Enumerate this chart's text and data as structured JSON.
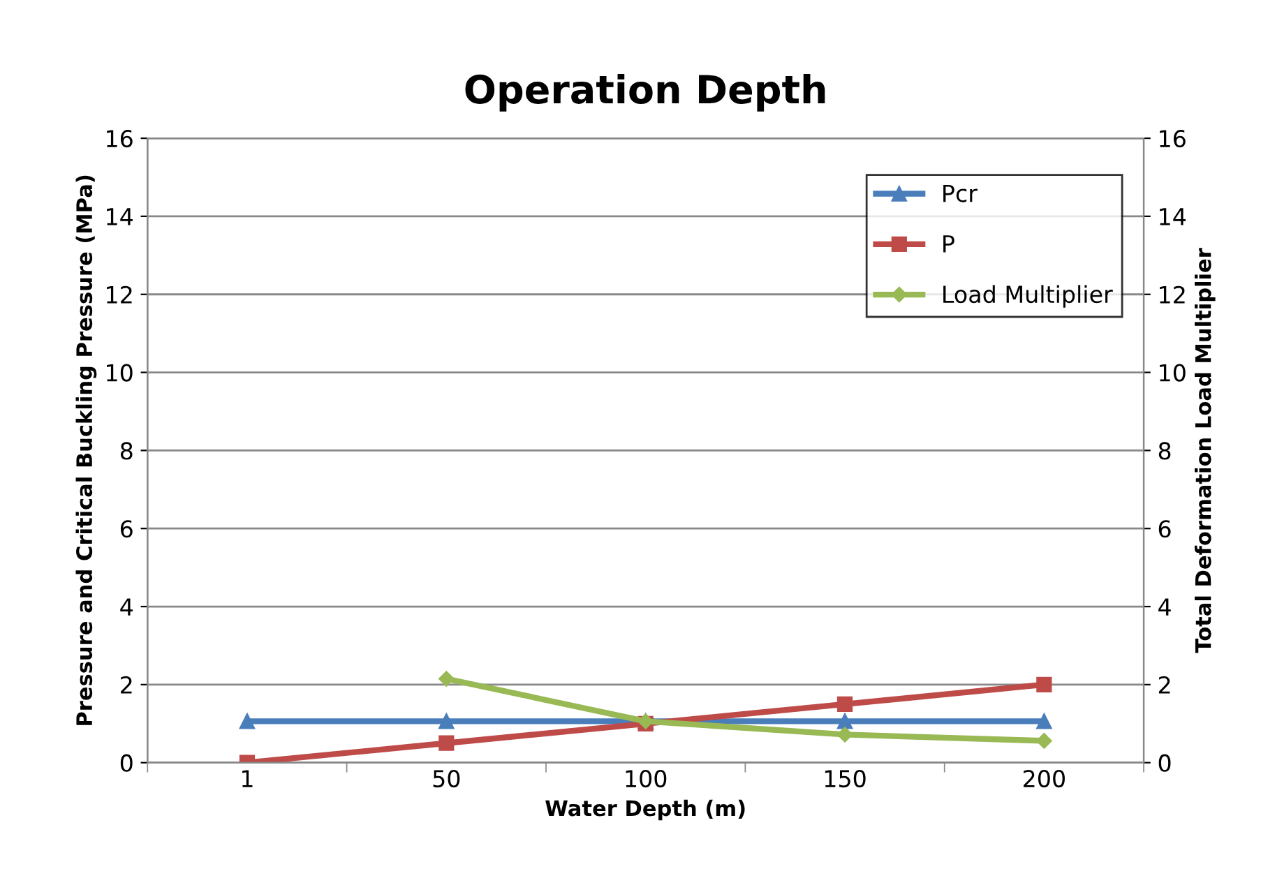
{
  "chart_data": {
    "type": "line",
    "title": "Operation Depth",
    "xlabel": "Water Depth (m)",
    "ylabel": "Pressure and Critical Buckling Pressure (MPa)",
    "y2label": "Total Deformation Load Multiplier",
    "categories": [
      "1",
      "50",
      "100",
      "150",
      "200"
    ],
    "series": [
      {
        "name": "Pcr",
        "color": "#4a7ebb",
        "marker": "triangle",
        "values": [
          1.06,
          1.06,
          1.06,
          1.06,
          1.06
        ]
      },
      {
        "name": "P",
        "color": "#be4b48",
        "marker": "square",
        "values": [
          0,
          0.5,
          1.0,
          1.5,
          2.0
        ]
      },
      {
        "name": "Load Multiplier",
        "color": "#98b954",
        "marker": "diamond",
        "values": [
          null,
          2.15,
          1.06,
          0.72,
          0.56
        ]
      }
    ],
    "ylim": [
      0,
      16
    ],
    "yticks": [
      0,
      2,
      4,
      6,
      8,
      10,
      12,
      14,
      16
    ],
    "y2lim": [
      0,
      16
    ],
    "y2ticks": [
      0,
      2,
      4,
      6,
      8,
      10,
      12,
      14,
      16
    ],
    "grid": "y",
    "legend": "top right",
    "line_style": "solid"
  }
}
